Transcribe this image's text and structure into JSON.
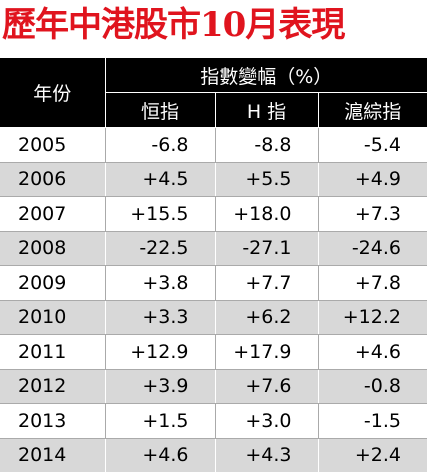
{
  "title": "歷年中港股市10月表現",
  "table": {
    "header": {
      "year": "年份",
      "group": "指數變幅（%）",
      "columns": [
        "恒指",
        "H 指",
        "滬綜指"
      ]
    },
    "rows": [
      [
        "2005",
        "-6.8",
        "-8.8",
        "-5.4"
      ],
      [
        "2006",
        "+4.5",
        "+5.5",
        "+4.9"
      ],
      [
        "2007",
        "+15.5",
        "+18.0",
        "+7.3"
      ],
      [
        "2008",
        "-22.5",
        "-27.1",
        "-24.6"
      ],
      [
        "2009",
        "+3.8",
        "+7.7",
        "+7.8"
      ],
      [
        "2010",
        "+3.3",
        "+6.2",
        "+12.2"
      ],
      [
        "2011",
        "+12.9",
        "+17.9",
        "+4.6"
      ],
      [
        "2012",
        "+3.9",
        "+7.6",
        "-0.8"
      ],
      [
        "2013",
        "+1.5",
        "+3.0",
        "-1.5"
      ],
      [
        "2014",
        "+4.6",
        "+4.3",
        "+2.4"
      ]
    ]
  }
}
